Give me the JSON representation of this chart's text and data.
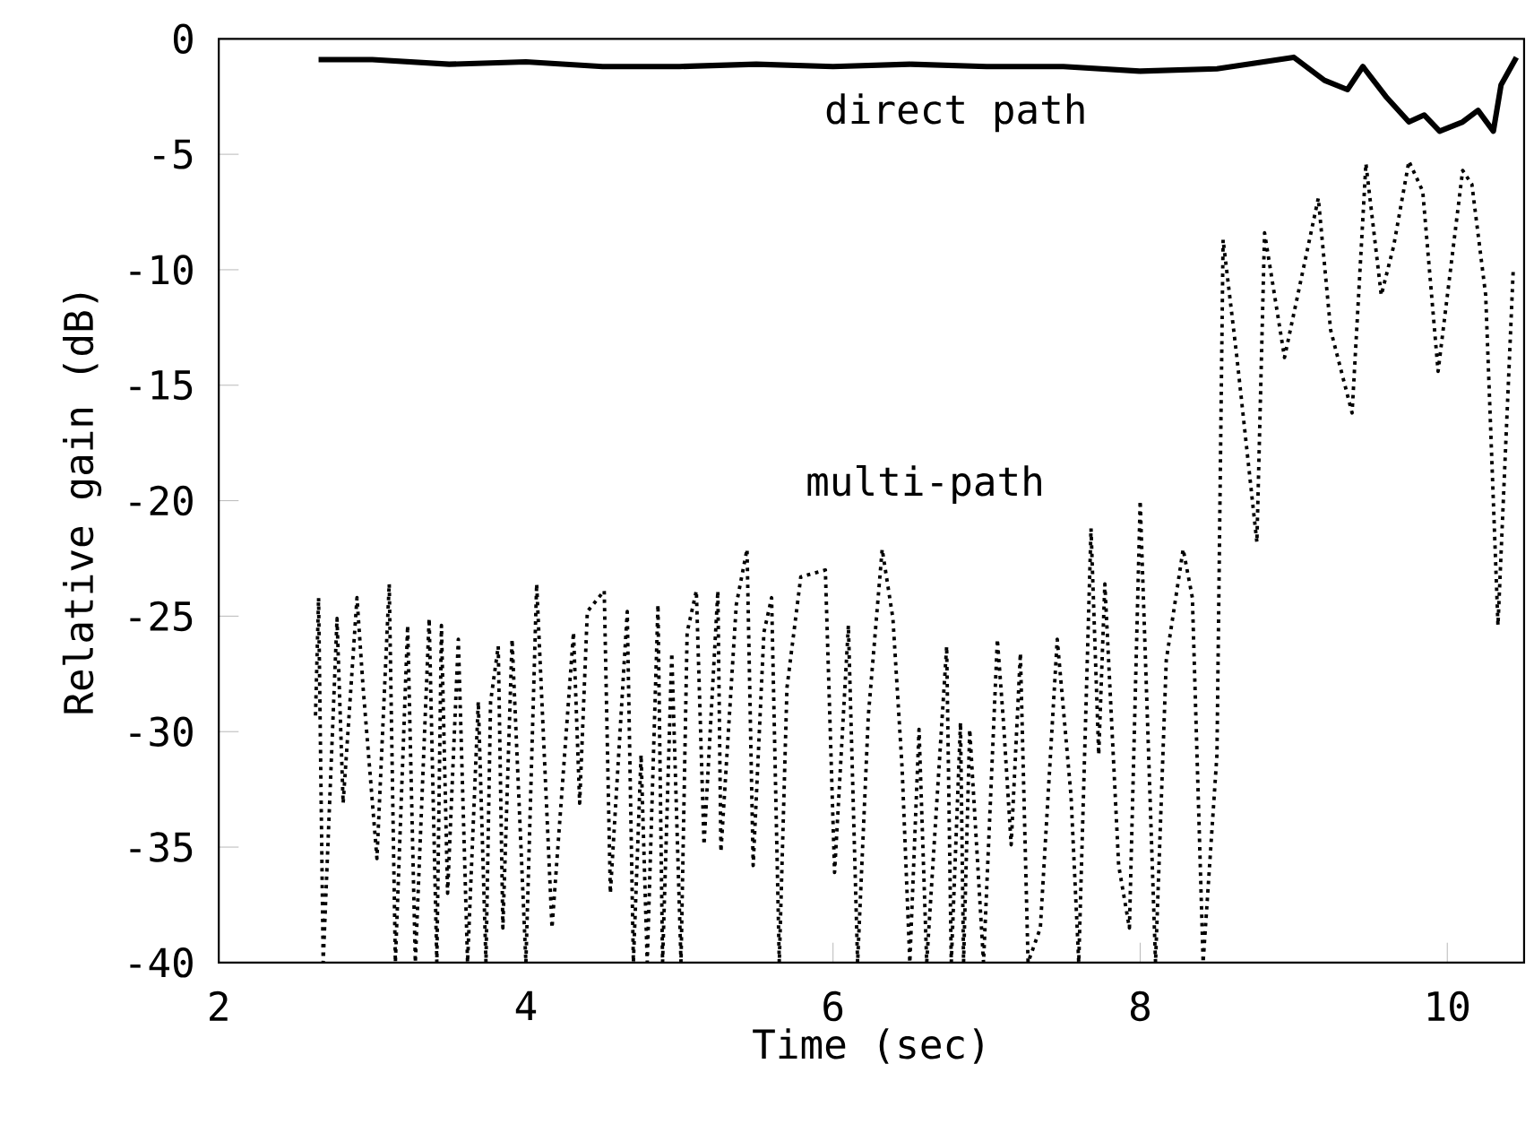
{
  "chart_data": {
    "type": "line",
    "xlabel": "Time (sec)",
    "ylabel": "Relative gain (dB)",
    "xlim": [
      2,
      10.5
    ],
    "ylim": [
      -40,
      0
    ],
    "xticks": [
      2,
      4,
      6,
      8,
      10
    ],
    "yticks": [
      -40,
      -35,
      -30,
      -25,
      -20,
      -15,
      -10,
      -5,
      0
    ],
    "grid": false,
    "legend": false,
    "series": [
      {
        "name": "direct path",
        "color": "#000000",
        "line_style": "solid",
        "x": [
          2.65,
          3,
          3.5,
          4,
          4.5,
          5,
          5.5,
          6,
          6.5,
          7,
          7.5,
          8,
          8.5,
          9,
          9.2,
          9.35,
          9.45,
          9.6,
          9.75,
          9.85,
          9.95,
          10.1,
          10.2,
          10.3,
          10.35,
          10.45
        ],
        "values": [
          -0.9,
          -0.9,
          -1.1,
          -1.0,
          -1.2,
          -1.2,
          -1.1,
          -1.2,
          -1.1,
          -1.2,
          -1.2,
          -1.4,
          -1.3,
          -0.8,
          -1.8,
          -2.2,
          -1.2,
          -2.5,
          -3.6,
          -3.3,
          -4.0,
          -3.6,
          -3.1,
          -4.0,
          -2.0,
          -0.8
        ]
      },
      {
        "name": "multi-path",
        "color": "#000000",
        "line_style": "dotted",
        "x": [
          2.63,
          2.65,
          2.68,
          2.77,
          2.81,
          2.9,
          2.94,
          3.03,
          3.11,
          3.15,
          3.23,
          3.28,
          3.37,
          3.42,
          3.45,
          3.49,
          3.56,
          3.62,
          3.69,
          3.74,
          3.77,
          3.82,
          3.85,
          3.91,
          4.0,
          4.07,
          4.17,
          4.31,
          4.35,
          4.4,
          4.51,
          4.55,
          4.66,
          4.7,
          4.75,
          4.79,
          4.86,
          4.89,
          4.95,
          5.01,
          5.05,
          5.11,
          5.16,
          5.25,
          5.27,
          5.37,
          5.44,
          5.48,
          5.55,
          5.6,
          5.65,
          5.7,
          5.79,
          5.95,
          6.01,
          6.1,
          6.16,
          6.23,
          6.32,
          6.39,
          6.45,
          6.5,
          6.56,
          6.61,
          6.74,
          6.77,
          6.83,
          6.85,
          6.89,
          6.98,
          7.07,
          7.11,
          7.16,
          7.22,
          7.27,
          7.35,
          7.46,
          7.55,
          7.6,
          7.68,
          7.73,
          7.77,
          7.86,
          7.93,
          8.0,
          8.1,
          8.17,
          8.28,
          8.34,
          8.41,
          8.5,
          8.54,
          8.63,
          8.76,
          8.81,
          8.94,
          9.16,
          9.24,
          9.38,
          9.47,
          9.57,
          9.65,
          9.75,
          9.84,
          9.94,
          10.1,
          10.16,
          10.25,
          10.33,
          10.43
        ],
        "values": [
          -29.3,
          -24.2,
          -40,
          -25.1,
          -33.1,
          -24.2,
          -28.1,
          -35.5,
          -23.6,
          -40,
          -25.4,
          -40,
          -25.1,
          -40,
          -25.4,
          -37.0,
          -26.0,
          -40,
          -28.7,
          -40,
          -28.7,
          -26.3,
          -38.5,
          -26.0,
          -40,
          -23.6,
          -38.5,
          -25.7,
          -33.1,
          -24.8,
          -23.9,
          -37.0,
          -24.8,
          -40,
          -31.0,
          -40,
          -24.5,
          -40,
          -26.6,
          -40,
          -25.7,
          -23.9,
          -34.9,
          -23.9,
          -35.2,
          -24.5,
          -22.1,
          -35.8,
          -25.7,
          -24.2,
          -40,
          -28.1,
          -23.3,
          -23.0,
          -36.1,
          -25.4,
          -40,
          -29.3,
          -22.1,
          -25.1,
          -31.6,
          -40,
          -29.9,
          -40,
          -26.3,
          -40,
          -29.6,
          -40,
          -29.9,
          -40,
          -26.0,
          -29.6,
          -34.9,
          -26.6,
          -40,
          -38.5,
          -26.0,
          -32.8,
          -40,
          -21.2,
          -31.0,
          -23.6,
          -35.8,
          -38.5,
          -20.0,
          -40,
          -26.9,
          -22.1,
          -24.2,
          -40,
          -31.0,
          -8.7,
          -13.8,
          -21.8,
          -8.4,
          -13.8,
          -6.9,
          -12.6,
          -16.2,
          -5.4,
          -11.1,
          -9.0,
          -5.3,
          -6.6,
          -14.4,
          -5.7,
          -6.3,
          -11.1,
          -25.4,
          -9.9
        ]
      }
    ]
  }
}
